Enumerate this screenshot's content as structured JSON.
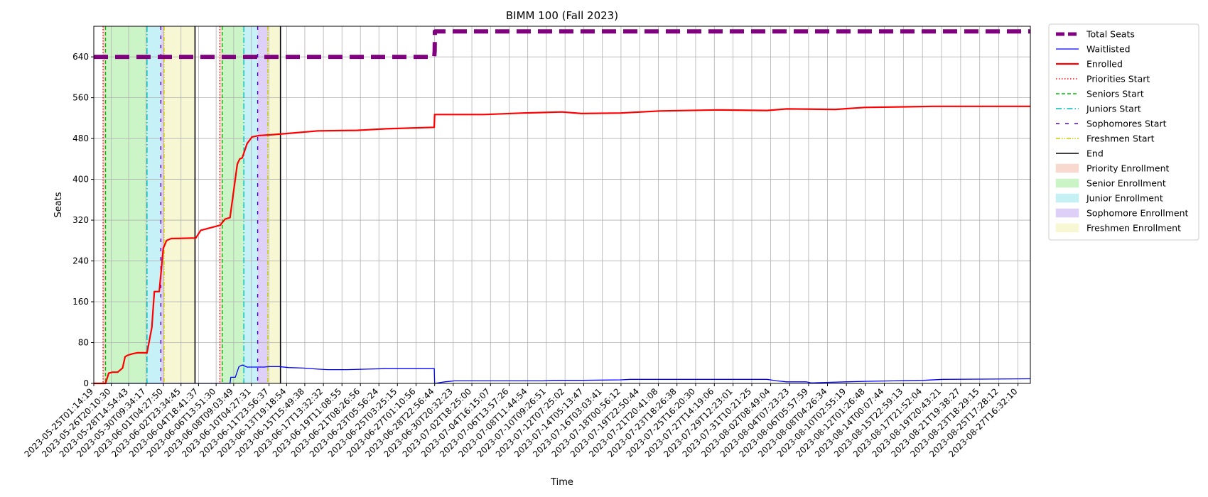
{
  "chart_data": {
    "type": "line",
    "title": "BIMM 100 (Fall 2023)",
    "xlabel": "Time",
    "ylabel": "Seats",
    "ylim": [
      0,
      700
    ],
    "yticks": [
      0,
      80,
      160,
      240,
      320,
      400,
      480,
      560,
      640
    ],
    "xlim": [
      "2023-05-25T01:14:19",
      "2023-08-28T23:00:00"
    ],
    "grid": true,
    "legend_position": "outside-right",
    "x_tick_labels": [
      "2023-05-25T01:14:19",
      "2023-05-26T20:10:30",
      "2023-05-28T14:54:43",
      "2023-05-30T09:34:17",
      "2023-06-01T04:27:50",
      "2023-06-02T23:34:45",
      "2023-06-04T18:41:37",
      "2023-06-06T13:51:30",
      "2023-06-08T09:03:49",
      "2023-06-10T04:27:31",
      "2023-06-11T23:56:37",
      "2023-06-13T19:18:54",
      "2023-06-15T15:49:38",
      "2023-06-17T13:32:32",
      "2023-06-19T11:08:55",
      "2023-06-21T08:26:56",
      "2023-06-23T05:56:24",
      "2023-06-25T03:25:15",
      "2023-06-27T01:10:56",
      "2023-06-28T22:56:44",
      "2023-06-30T20:32:23",
      "2023-07-02T18:25:00",
      "2023-07-04T16:15:07",
      "2023-07-06T13:57:26",
      "2023-07-08T11:44:54",
      "2023-07-10T09:26:51",
      "2023-07-12T07:25:02",
      "2023-07-14T05:13:47",
      "2023-07-16T03:03:41",
      "2023-07-18T00:56:12",
      "2023-07-19T22:50:44",
      "2023-07-21T20:41:08",
      "2023-07-23T18:26:38",
      "2023-07-25T16:20:30",
      "2023-07-27T14:19:06",
      "2023-07-29T12:23:01",
      "2023-07-31T10:21:25",
      "2023-08-02T08:49:04",
      "2023-08-04T07:23:23",
      "2023-08-06T05:57:59",
      "2023-08-08T04:26:34",
      "2023-08-10T02:55:19",
      "2023-08-12T01:26:48",
      "2023-08-14T00:07:44",
      "2023-08-15T22:59:13",
      "2023-08-17T21:52:04",
      "2023-08-19T20:43:21",
      "2023-08-21T19:38:27",
      "2023-08-23T18:29:15",
      "2023-08-25T17:28:12",
      "2023-08-27T16:32:10"
    ],
    "series": [
      {
        "name": "Total Seats",
        "color": "#800080",
        "style": "dashed-thick",
        "points": [
          [
            "2023-05-25T01:14:19",
            640
          ],
          [
            "2023-06-28T22:00:00",
            640
          ],
          [
            "2023-06-28T23:00:00",
            651
          ],
          [
            "2023-06-28T23:30:00",
            690
          ],
          [
            "2023-08-28T23:00:00",
            690
          ]
        ]
      },
      {
        "name": "Waitlisted",
        "color": "#0000ff",
        "style": "solid-thin",
        "points": [
          [
            "2023-05-25T01:14:19",
            0
          ],
          [
            "2023-06-08T00:00:00",
            0
          ],
          [
            "2023-06-08T02:00:00",
            12
          ],
          [
            "2023-06-08T13:00:00",
            12
          ],
          [
            "2023-06-08T22:00:00",
            33
          ],
          [
            "2023-06-09T06:00:00",
            36
          ],
          [
            "2023-06-09T18:00:00",
            32
          ],
          [
            "2023-06-11T12:00:00",
            32
          ],
          [
            "2023-06-12T00:00:00",
            33
          ],
          [
            "2023-06-13T00:00:00",
            33
          ],
          [
            "2023-06-14T00:00:00",
            31
          ],
          [
            "2023-06-15T12:00:00",
            30
          ],
          [
            "2023-06-17T00:00:00",
            28
          ],
          [
            "2023-06-18T00:00:00",
            27
          ],
          [
            "2023-06-20T00:00:00",
            27
          ],
          [
            "2023-06-22T00:00:00",
            28
          ],
          [
            "2023-06-24T00:00:00",
            29
          ],
          [
            "2023-06-28T22:00:00",
            29
          ],
          [
            "2023-06-28T23:00:00",
            0
          ],
          [
            "2023-06-30T00:00:00",
            3
          ],
          [
            "2023-07-01T00:00:00",
            5
          ],
          [
            "2023-07-03T00:00:00",
            5
          ],
          [
            "2023-07-10T00:00:00",
            5
          ],
          [
            "2023-07-11T00:00:00",
            6
          ],
          [
            "2023-07-14T00:00:00",
            6
          ],
          [
            "2023-07-18T00:00:00",
            7
          ],
          [
            "2023-07-19T00:00:00",
            8
          ],
          [
            "2023-08-02T00:00:00",
            8
          ],
          [
            "2023-08-03T00:00:00",
            5
          ],
          [
            "2023-08-04T00:00:00",
            3
          ],
          [
            "2023-08-06T00:00:00",
            3
          ],
          [
            "2023-08-06T12:00:00",
            1
          ],
          [
            "2023-08-08T00:00:00",
            2
          ],
          [
            "2023-08-10T00:00:00",
            3
          ],
          [
            "2023-08-12T00:00:00",
            4
          ],
          [
            "2023-08-15T00:00:00",
            5
          ],
          [
            "2023-08-18T00:00:00",
            6
          ],
          [
            "2023-08-20T00:00:00",
            8
          ],
          [
            "2023-08-28T23:00:00",
            9
          ]
        ]
      },
      {
        "name": "Enrolled",
        "color": "#ff0000",
        "style": "solid",
        "points": [
          [
            "2023-05-25T01:14:19",
            0
          ],
          [
            "2023-05-26T06:00:00",
            0
          ],
          [
            "2023-05-26T14:00:00",
            20
          ],
          [
            "2023-05-27T00:00:00",
            22
          ],
          [
            "2023-05-27T12:00:00",
            22
          ],
          [
            "2023-05-28T00:00:00",
            30
          ],
          [
            "2023-05-28T06:00:00",
            52
          ],
          [
            "2023-05-28T12:00:00",
            55
          ],
          [
            "2023-05-29T00:00:00",
            58
          ],
          [
            "2023-05-29T12:00:00",
            60
          ],
          [
            "2023-05-30T12:00:00",
            60
          ],
          [
            "2023-05-31T00:00:00",
            110
          ],
          [
            "2023-05-31T06:00:00",
            180
          ],
          [
            "2023-05-31T18:00:00",
            180
          ],
          [
            "2023-06-01T04:00:00",
            265
          ],
          [
            "2023-06-01T12:00:00",
            280
          ],
          [
            "2023-06-02T00:00:00",
            284
          ],
          [
            "2023-06-02T12:00:00",
            284
          ],
          [
            "2023-06-04T12:00:00",
            285
          ],
          [
            "2023-06-05T00:00:00",
            300
          ],
          [
            "2023-06-06T00:00:00",
            305
          ],
          [
            "2023-06-07T00:00:00",
            310
          ],
          [
            "2023-06-07T12:00:00",
            322
          ],
          [
            "2023-06-08T00:00:00",
            325
          ],
          [
            "2023-06-08T18:00:00",
            430
          ],
          [
            "2023-06-09T00:00:00",
            440
          ],
          [
            "2023-06-09T06:00:00",
            442
          ],
          [
            "2023-06-09T18:00:00",
            470
          ],
          [
            "2023-06-10T06:00:00",
            483
          ],
          [
            "2023-06-11T00:00:00",
            486
          ],
          [
            "2023-06-11T23:00:00",
            487
          ],
          [
            "2023-06-14T00:00:00",
            490
          ],
          [
            "2023-06-17T00:00:00",
            495
          ],
          [
            "2023-06-21T00:00:00",
            496
          ],
          [
            "2023-06-24T00:00:00",
            499
          ],
          [
            "2023-06-28T22:00:00",
            502
          ],
          [
            "2023-06-28T23:00:00",
            527
          ],
          [
            "2023-07-04T00:00:00",
            527
          ],
          [
            "2023-07-08T00:00:00",
            530
          ],
          [
            "2023-07-12T00:00:00",
            532
          ],
          [
            "2023-07-14T00:00:00",
            529
          ],
          [
            "2023-07-18T00:00:00",
            530
          ],
          [
            "2023-07-22T00:00:00",
            534
          ],
          [
            "2023-07-28T00:00:00",
            536
          ],
          [
            "2023-08-02T00:00:00",
            535
          ],
          [
            "2023-08-04T00:00:00",
            538
          ],
          [
            "2023-08-09T00:00:00",
            537
          ],
          [
            "2023-08-12T00:00:00",
            541
          ],
          [
            "2023-08-16T00:00:00",
            542
          ],
          [
            "2023-08-19T00:00:00",
            543
          ],
          [
            "2023-08-28T23:00:00",
            543
          ]
        ]
      }
    ],
    "vertical_lines": [
      {
        "name": "Priorities Start",
        "color": "#ff0000",
        "style": "dotted",
        "x": [
          "2023-05-26T00:00:00",
          "2023-06-06T23:00:00"
        ]
      },
      {
        "name": "Seniors Start",
        "color": "#00bb00",
        "style": "dashed",
        "x": [
          "2023-05-26T06:00:00",
          "2023-06-07T05:00:00"
        ]
      },
      {
        "name": "Juniors Start",
        "color": "#00bbbb",
        "style": "dashdot",
        "x": [
          "2023-05-30T12:00:00",
          "2023-06-09T10:00:00"
        ]
      },
      {
        "name": "Sophomores Start",
        "color": "#5500cc",
        "style": "loosedash",
        "x": [
          "2023-05-31T22:00:00",
          "2023-06-10T20:00:00"
        ]
      },
      {
        "name": "Freshmen Start",
        "color": "#cccc00",
        "style": "dashdotdot",
        "x": [
          "2023-06-01T06:00:00",
          "2023-06-11T21:00:00"
        ]
      },
      {
        "name": "End",
        "color": "#000000",
        "style": "solid",
        "x": [
          "2023-06-04T10:00:00",
          "2023-06-13T04:00:00"
        ]
      }
    ],
    "shaded_regions": [
      {
        "name": "Priority Enrollment",
        "color": "#f4c0b0",
        "spans": [
          [
            "2023-05-26T00:00:00",
            "2023-05-26T06:00:00"
          ],
          [
            "2023-06-06T23:00:00",
            "2023-06-07T05:00:00"
          ]
        ]
      },
      {
        "name": "Senior Enrollment",
        "color": "#a8eea0",
        "spans": [
          [
            "2023-05-26T06:00:00",
            "2023-05-30T12:00:00"
          ],
          [
            "2023-06-07T05:00:00",
            "2023-06-09T10:00:00"
          ]
        ]
      },
      {
        "name": "Junior Enrollment",
        "color": "#a0e8f0",
        "spans": [
          [
            "2023-05-30T12:00:00",
            "2023-05-31T22:00:00"
          ],
          [
            "2023-06-09T10:00:00",
            "2023-06-10T20:00:00"
          ]
        ]
      },
      {
        "name": "Sophomore Enrollment",
        "color": "#c8b0f0",
        "spans": [
          [
            "2023-05-31T22:00:00",
            "2023-06-01T06:00:00"
          ],
          [
            "2023-06-10T20:00:00",
            "2023-06-11T21:00:00"
          ]
        ]
      },
      {
        "name": "Freshmen Enrollment",
        "color": "#f2f2b8",
        "spans": [
          [
            "2023-06-01T06:00:00",
            "2023-06-04T10:00:00"
          ],
          [
            "2023-06-11T21:00:00",
            "2023-06-13T04:00:00"
          ]
        ]
      }
    ],
    "legend_order": [
      "Total Seats",
      "Waitlisted",
      "Enrolled",
      "Priorities Start",
      "Seniors Start",
      "Juniors Start",
      "Sophomores Start",
      "Freshmen Start",
      "End",
      "Priority Enrollment",
      "Senior Enrollment",
      "Junior Enrollment",
      "Sophomore Enrollment",
      "Freshmen Enrollment"
    ]
  }
}
